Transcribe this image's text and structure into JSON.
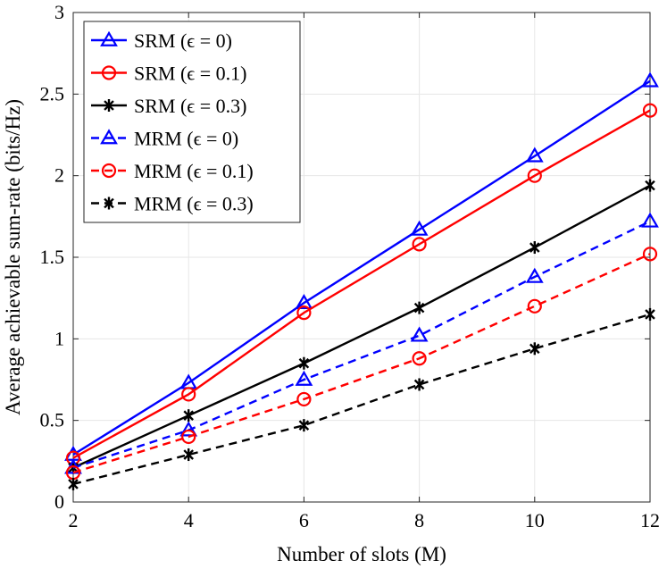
{
  "chart_data": {
    "type": "line",
    "title": "",
    "xlabel": "Number of slots (M)",
    "ylabel": "Average achievable sum-rate (bits/Hz)",
    "xlim": [
      2,
      12
    ],
    "ylim": [
      0,
      3
    ],
    "xticks": [
      "2",
      "4",
      "6",
      "8",
      "10",
      "12"
    ],
    "yticks": [
      "0",
      "0.5",
      "1",
      "1.5",
      "2",
      "2.5",
      "3"
    ],
    "grid": true,
    "legend_position": "top-left",
    "x": [
      2,
      4,
      6,
      8,
      10,
      12
    ],
    "series": [
      {
        "name": "SRM (ϵ = 0)",
        "values": [
          0.29,
          0.73,
          1.22,
          1.67,
          2.12,
          2.58
        ],
        "color": "#0000ff",
        "marker": "triangle",
        "line": "solid"
      },
      {
        "name": "SRM (ϵ = 0.1)",
        "values": [
          0.27,
          0.66,
          1.16,
          1.58,
          2.0,
          2.4
        ],
        "color": "#ff0000",
        "marker": "circle",
        "line": "solid"
      },
      {
        "name": "SRM (ϵ = 0.3)",
        "values": [
          0.21,
          0.53,
          0.85,
          1.19,
          1.56,
          1.94
        ],
        "color": "#000000",
        "marker": "asterisk",
        "line": "solid"
      },
      {
        "name": "MRM (ϵ = 0)",
        "values": [
          0.21,
          0.44,
          0.75,
          1.02,
          1.38,
          1.72
        ],
        "color": "#0000ff",
        "marker": "triangle",
        "line": "dashed"
      },
      {
        "name": "MRM (ϵ = 0.1)",
        "values": [
          0.18,
          0.4,
          0.63,
          0.88,
          1.2,
          1.52
        ],
        "color": "#ff0000",
        "marker": "circle",
        "line": "dashed"
      },
      {
        "name": "MRM (ϵ = 0.3)",
        "values": [
          0.11,
          0.29,
          0.47,
          0.72,
          0.94,
          1.15
        ],
        "color": "#000000",
        "marker": "asterisk",
        "line": "dashed"
      }
    ]
  }
}
